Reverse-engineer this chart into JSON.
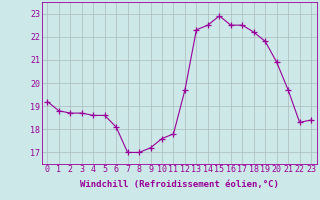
{
  "x": [
    0,
    1,
    2,
    3,
    4,
    5,
    6,
    7,
    8,
    9,
    10,
    11,
    12,
    13,
    14,
    15,
    16,
    17,
    18,
    19,
    20,
    21,
    22,
    23
  ],
  "y": [
    19.2,
    18.8,
    18.7,
    18.7,
    18.6,
    18.6,
    18.1,
    17.0,
    17.0,
    17.2,
    17.6,
    17.8,
    19.7,
    22.3,
    22.5,
    22.9,
    22.5,
    22.5,
    22.2,
    21.8,
    20.9,
    19.7,
    18.3,
    18.4
  ],
  "line_color": "#990099",
  "marker": "+",
  "marker_size": 4,
  "bg_color": "#cce8e8",
  "grid_color": "#aabbbb",
  "xlabel": "Windchill (Refroidissement éolien,°C)",
  "xlabel_fontsize": 6.5,
  "tick_fontsize": 6,
  "ylim": [
    16.5,
    23.5
  ],
  "xlim": [
    -0.5,
    23.5
  ],
  "yticks": [
    17,
    18,
    19,
    20,
    21,
    22,
    23
  ],
  "xticks": [
    0,
    1,
    2,
    3,
    4,
    5,
    6,
    7,
    8,
    9,
    10,
    11,
    12,
    13,
    14,
    15,
    16,
    17,
    18,
    19,
    20,
    21,
    22,
    23
  ]
}
